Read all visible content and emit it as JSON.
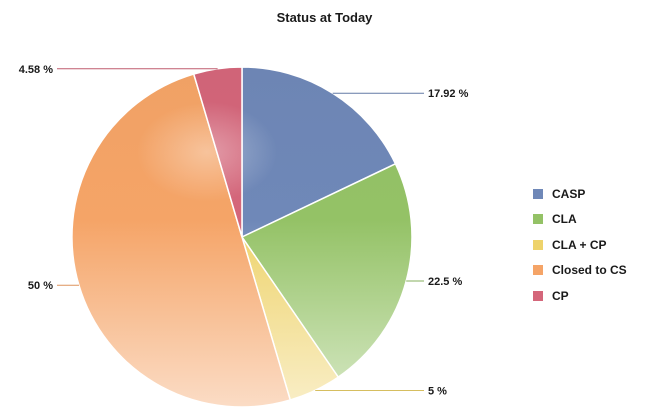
{
  "chart_data": {
    "type": "pie",
    "title": "Status at Today",
    "legend_position": "right",
    "slices": [
      {
        "name": "CASP",
        "value": 17.92,
        "label": "17.92 %",
        "color": "#6f88b8"
      },
      {
        "name": "CLA",
        "value": 22.5,
        "label": "22.5 %",
        "color": "#94c266"
      },
      {
        "name": "CLA + CP",
        "value": 5,
        "label": "5 %",
        "color": "#eed36b"
      },
      {
        "name": "Closed to CS",
        "value": 50,
        "label": "50 %",
        "color": "#f5a467"
      },
      {
        "name": "CP",
        "value": 4.58,
        "label": "4.58 %",
        "color": "#d4667a"
      }
    ]
  }
}
